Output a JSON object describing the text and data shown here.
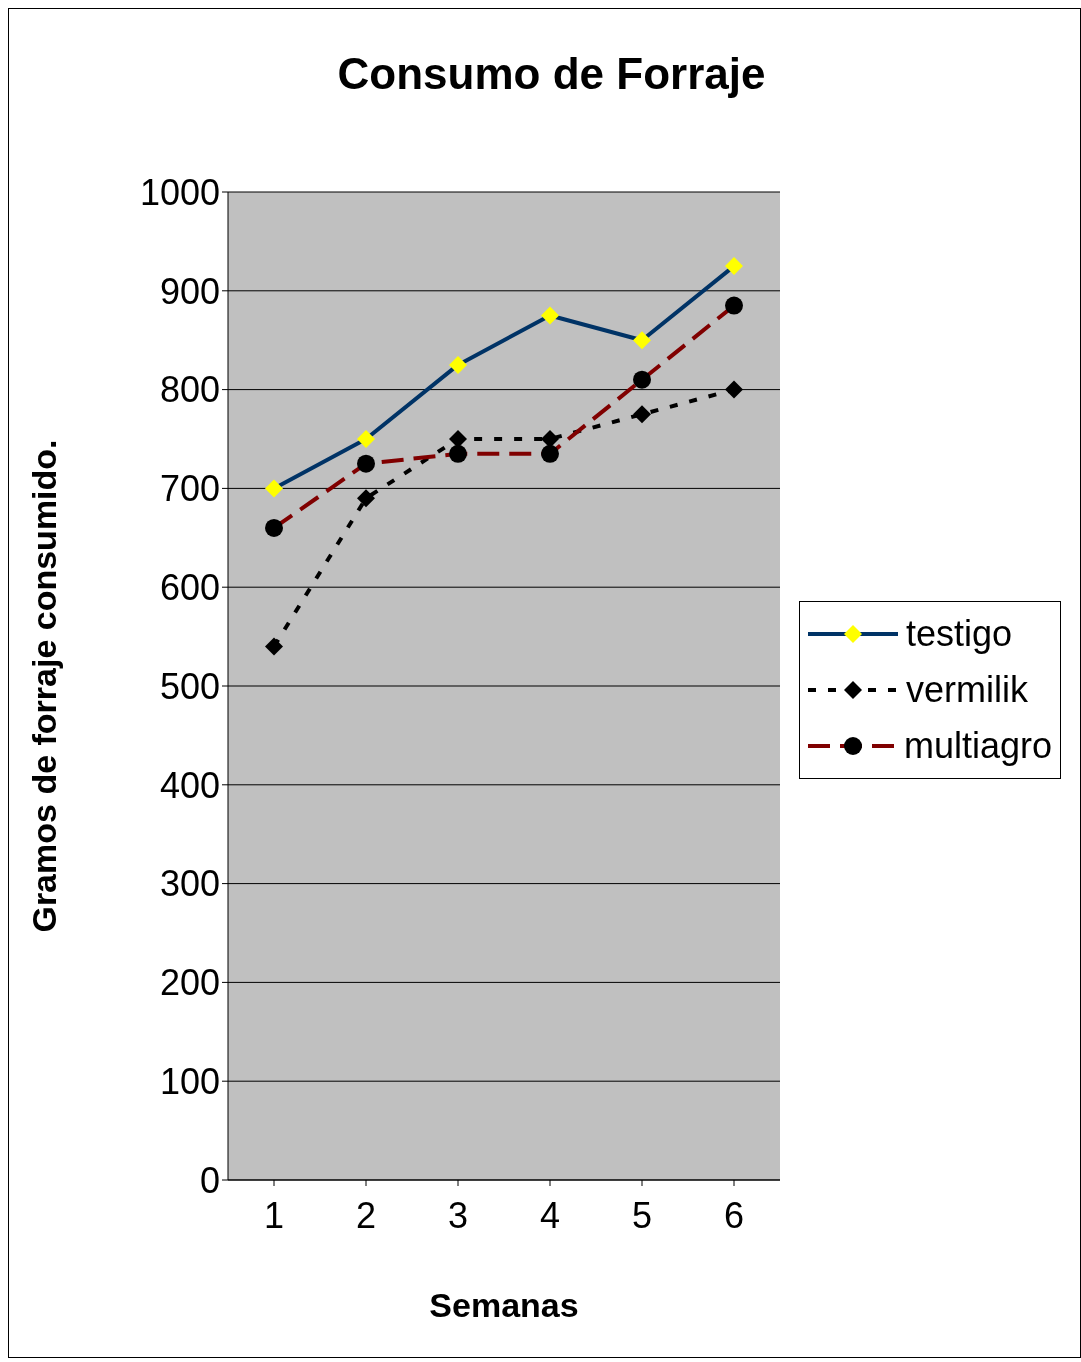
{
  "chart_data": {
    "type": "line",
    "title": "Consumo de Forraje",
    "xlabel": "Semanas",
    "ylabel": "Gramos de forraje consumido.",
    "categories": [
      "1",
      "2",
      "3",
      "4",
      "5",
      "6"
    ],
    "series": [
      {
        "name": "testigo",
        "color": "#003366",
        "marker": "diamond",
        "line_style": "solid",
        "values": [
          700,
          750,
          825,
          875,
          850,
          925
        ]
      },
      {
        "name": "vermilik",
        "color": "#000000",
        "marker": "diamond",
        "line_style": "dotted",
        "values": [
          540,
          690,
          750,
          750,
          775,
          800
        ]
      },
      {
        "name": "multiagro",
        "color": "#800000",
        "marker": "circle",
        "line_style": "dashed",
        "values": [
          660,
          725,
          735,
          735,
          810,
          885
        ]
      }
    ],
    "ylim": [
      0,
      1000
    ],
    "yticks": [
      0,
      100,
      200,
      300,
      400,
      500,
      600,
      700,
      800,
      900,
      1000
    ],
    "grid": "y",
    "legend": "right"
  }
}
